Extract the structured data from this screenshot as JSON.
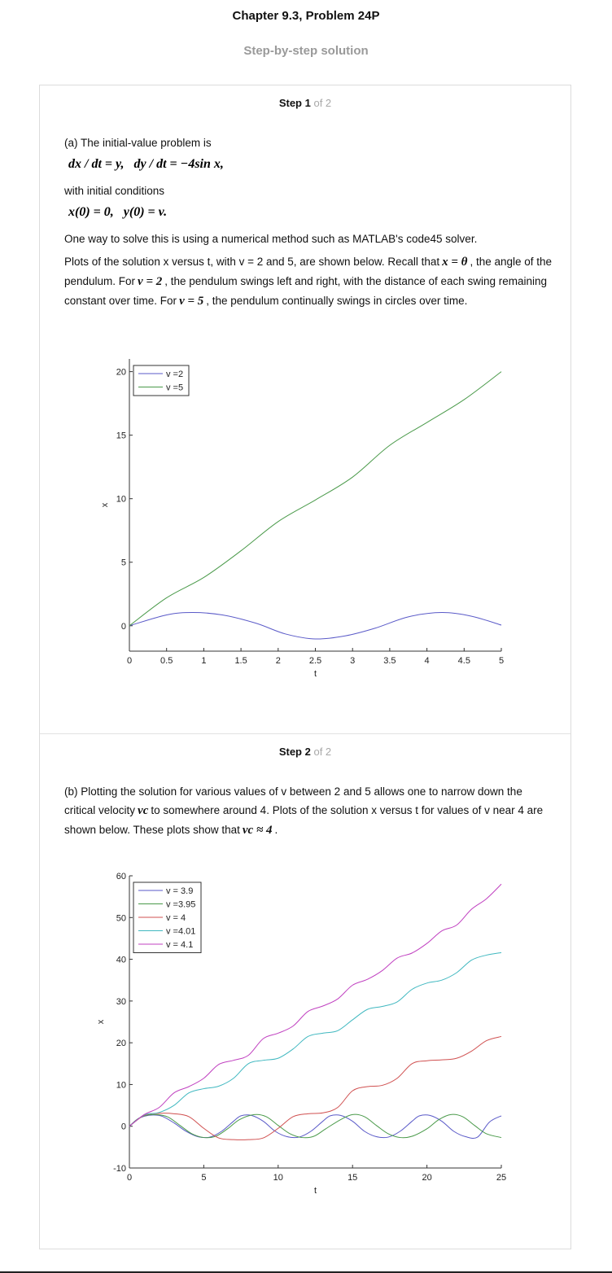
{
  "header": {
    "title": "Chapter 9.3, Problem 24P",
    "subtitle": "Step-by-step solution"
  },
  "steps": [
    {
      "label": "Step 1",
      "of": "of 2",
      "p1": "(a) The initial-value problem is",
      "eq1": "dx / dt = y,   dy / dt = −4sin x,",
      "p2": "with initial conditions",
      "eq2": "x(0) = 0,   y(0) = v.",
      "p3": "One way to solve this is using a numerical method such as MATLAB's code45 solver.",
      "p4a": "Plots of the solution x versus t, with v = 2 and 5, are shown below. Recall that",
      "p4_eq1": "x = θ",
      "p4b": ", the angle of the pendulum. For",
      "p4_eq2": "v = 2",
      "p4c": ", the pendulum swings left and right, with the distance of each swing remaining constant over time. For",
      "p4_eq3": "v = 5",
      "p4d": ", the pendulum continually swings in circles over time."
    },
    {
      "label": "Step 2",
      "of": "of 2",
      "p1a": "(b) Plotting the solution for various values of v between 2 and 5 allows one to narrow down the critical velocity",
      "p1_eq1": "vc",
      "p1b": "to somewhere around 4. Plots of the solution x versus t for values of v near 4 are shown below. These plots show that",
      "p1_eq2": "vc ≈ 4",
      "p1c": "."
    }
  ],
  "chart_data": [
    {
      "type": "line",
      "xlabel": "t",
      "ylabel": "x",
      "xlim": [
        0,
        5
      ],
      "ylim": [
        -2,
        21
      ],
      "xticks": [
        "0",
        "0.5",
        "1",
        "1.5",
        "2",
        "2.5",
        "3",
        "3.5",
        "4",
        "4.5",
        "5"
      ],
      "yticks": [
        "0",
        "5",
        "10",
        "15",
        "20"
      ],
      "legend_position": "top-left",
      "series": [
        {
          "name": "v =2",
          "color": "#5a5ac8",
          "x": [
            0,
            0.5,
            0.85,
            1.25,
            1.7,
            2.1,
            2.5,
            2.9,
            3.3,
            3.75,
            4.2,
            4.6,
            5.0
          ],
          "y": [
            0,
            0.85,
            1.04,
            0.85,
            0.2,
            -0.65,
            -1.04,
            -0.8,
            -0.2,
            0.7,
            1.04,
            0.75,
            0.05
          ]
        },
        {
          "name": "v =5",
          "color": "#4a9a4a",
          "x": [
            0,
            0.5,
            1.0,
            1.5,
            2.0,
            2.5,
            3.0,
            3.5,
            4.0,
            4.5,
            5.0
          ],
          "y": [
            0,
            2.2,
            3.8,
            5.9,
            8.2,
            9.9,
            11.7,
            14.2,
            16.0,
            17.8,
            20.0
          ]
        }
      ]
    },
    {
      "type": "line",
      "xlabel": "t",
      "ylabel": "x",
      "xlim": [
        0,
        25
      ],
      "ylim": [
        -10,
        60
      ],
      "xticks": [
        "0",
        "5",
        "10",
        "15",
        "20",
        "25"
      ],
      "yticks": [
        "-10",
        "0",
        "10",
        "20",
        "30",
        "40",
        "50",
        "60"
      ],
      "legend_position": "top-left",
      "series": [
        {
          "name": "v = 3.9",
          "color": "#5a5ac8",
          "x": [
            0,
            0.5,
            1,
            1.6,
            2.2,
            3,
            3.8,
            4.6,
            5.4,
            6.2,
            7,
            7.5,
            8.2,
            9,
            9.8,
            10.6,
            11.4,
            12.2,
            13,
            13.5,
            14.2,
            15,
            15.8,
            16.6,
            17.4,
            18.2,
            19,
            19.5,
            20.2,
            21,
            21.8,
            22.6,
            23.4,
            24.2,
            25
          ],
          "y": [
            0,
            1.6,
            2.4,
            2.7,
            2.4,
            0.8,
            -1.2,
            -2.5,
            -2.6,
            -1.2,
            1.2,
            2.5,
            2.6,
            1.2,
            -1.2,
            -2.5,
            -2.6,
            -1.2,
            1.2,
            2.5,
            2.6,
            1.2,
            -1.2,
            -2.5,
            -2.6,
            -1.2,
            1.2,
            2.5,
            2.6,
            1.2,
            -1.2,
            -2.5,
            -2.6,
            1.0,
            2.5
          ]
        },
        {
          "name": "v =3.95",
          "color": "#4a9a4a",
          "x": [
            0,
            0.5,
            1,
            1.8,
            2.6,
            3.4,
            4.2,
            5,
            5.8,
            6.6,
            7.4,
            8.4,
            9.2,
            10,
            10.8,
            11.6,
            12.4,
            13.2,
            14.2,
            15,
            15.8,
            16.6,
            17.4,
            18.2,
            19,
            20,
            20.8,
            21.6,
            22.4,
            23.2,
            24,
            25
          ],
          "y": [
            0,
            1.6,
            2.5,
            2.8,
            2.2,
            0.2,
            -1.8,
            -2.7,
            -2.4,
            -0.6,
            1.6,
            2.8,
            2.3,
            0.2,
            -1.8,
            -2.7,
            -2.4,
            -0.6,
            1.6,
            2.8,
            2.3,
            0.2,
            -1.8,
            -2.7,
            -2.4,
            -0.6,
            1.6,
            2.8,
            2.3,
            0.2,
            -1.8,
            -2.7
          ]
        },
        {
          "name": "v =   4",
          "color": "#d05050",
          "x": [
            0,
            1,
            2,
            3,
            4,
            5,
            6,
            7,
            8,
            9,
            10,
            11,
            12,
            13,
            14,
            15,
            16,
            17,
            18,
            19,
            20,
            21,
            22,
            23,
            24,
            25
          ],
          "y": [
            0,
            2.6,
            3.1,
            3.0,
            2.3,
            -0.5,
            -2.8,
            -3.2,
            -3.2,
            -2.8,
            -0.5,
            2.3,
            3.0,
            3.2,
            4.5,
            8.5,
            9.5,
            9.8,
            11.5,
            15.0,
            15.7,
            15.9,
            16.3,
            18.0,
            20.5,
            21.5
          ]
        },
        {
          "name": "v =4.01",
          "color": "#40b8c0",
          "x": [
            0,
            1,
            2,
            3,
            4,
            5,
            6,
            7,
            8,
            9,
            10,
            11,
            12,
            13,
            14,
            15,
            16,
            17,
            18,
            19,
            20,
            21,
            22,
            23,
            24,
            25
          ],
          "y": [
            0,
            2.7,
            3.3,
            5.0,
            8.0,
            9.0,
            9.6,
            11.5,
            15.0,
            15.8,
            16.3,
            18.5,
            21.5,
            22.3,
            22.9,
            25.5,
            28.0,
            28.7,
            29.8,
            32.8,
            34.3,
            35.0,
            36.8,
            39.8,
            41.0,
            41.6
          ]
        },
        {
          "name": "v = 4.1",
          "color": "#c040c0",
          "x": [
            0,
            1,
            2,
            3,
            4,
            5,
            6,
            7,
            8,
            9,
            10,
            11,
            12,
            13,
            14,
            15,
            16,
            17,
            18,
            19,
            20,
            21,
            22,
            23,
            24,
            25
          ],
          "y": [
            0,
            2.8,
            4.5,
            8.0,
            9.5,
            11.5,
            14.8,
            15.8,
            17.0,
            21.0,
            22.3,
            24.0,
            27.5,
            28.8,
            30.5,
            33.8,
            35.2,
            37.3,
            40.3,
            41.5,
            43.8,
            46.8,
            48.2,
            52.0,
            54.5,
            58.0
          ]
        }
      ]
    }
  ]
}
